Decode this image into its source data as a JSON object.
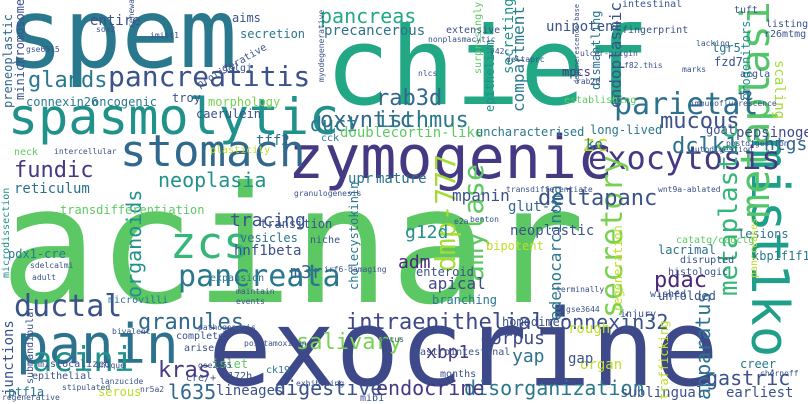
{
  "words": [
    {
      "text": "acinar",
      "color": "#5cc863"
    },
    {
      "text": "exocrine",
      "color": "#3e4989"
    },
    {
      "text": "spem",
      "color": "#2a788e"
    },
    {
      "text": "chief",
      "color": "#22a884"
    },
    {
      "text": "zymogenic",
      "color": "#443983"
    },
    {
      "text": "stomach",
      "color": "#31688e"
    },
    {
      "text": "spasmolytic",
      "color": "#21918c"
    },
    {
      "text": "panin",
      "color": "#2c728e"
    },
    {
      "text": "mist1ko",
      "color": "#1f9e89"
    },
    {
      "text": "metaplasia",
      "color": "#52c569"
    },
    {
      "text": "zcs",
      "color": "#35b779"
    },
    {
      "text": "pancreatitis",
      "color": "#3b528b"
    },
    {
      "text": "exocytosis",
      "color": "#443983"
    },
    {
      "text": "oxyntic",
      "color": "#31688e"
    },
    {
      "text": "parietal",
      "color": "#2c728e"
    },
    {
      "text": "pancreata",
      "color": "#2a788e"
    },
    {
      "text": "secretory",
      "color": "#7ad151"
    },
    {
      "text": "ductal",
      "color": "#3b528b"
    },
    {
      "text": "acini",
      "color": "#21918c"
    },
    {
      "text": "kras",
      "color": "#443983"
    },
    {
      "text": "dmp-777",
      "color": "#a5db36"
    },
    {
      "text": "amylase",
      "color": "#5ec962"
    },
    {
      "text": "pancreas",
      "color": "#22a884"
    },
    {
      "text": "glands",
      "color": "#2a788e"
    },
    {
      "text": "fundic",
      "color": "#443983"
    },
    {
      "text": "mucous",
      "color": "#3b528b"
    },
    {
      "text": "isthmus",
      "color": "#2a788e"
    },
    {
      "text": "rab3d",
      "color": "#31688e"
    },
    {
      "text": "dclk1",
      "color": "#2c728e"
    },
    {
      "text": "deltapanc",
      "color": "#3b528b"
    },
    {
      "text": "zc",
      "color": "#bddf26"
    },
    {
      "text": "neoplasia",
      "color": "#21918c"
    },
    {
      "text": "intraepithelial",
      "color": "#3e4989"
    },
    {
      "text": "salivary",
      "color": "#7ad151"
    },
    {
      "text": "granules",
      "color": "#31688e"
    },
    {
      "text": "organoids",
      "color": "#21918c"
    },
    {
      "text": "metaplastic",
      "color": "#35b779"
    },
    {
      "text": "connexin32",
      "color": "#3b528b"
    },
    {
      "text": "adenocarcinoma",
      "color": "#2a788e"
    },
    {
      "text": "apparatus",
      "color": "#2c728e"
    },
    {
      "text": "gastric",
      "color": "#3b528b"
    },
    {
      "text": "xbp1",
      "color": "#443983"
    },
    {
      "text": "pdac",
      "color": "#482878"
    },
    {
      "text": "yap",
      "color": "#2c728e"
    },
    {
      "text": "corpus",
      "color": "#3e4989"
    },
    {
      "text": "disorganization",
      "color": "#2a788e"
    },
    {
      "text": "digestive",
      "color": "#3b528b"
    },
    {
      "text": "endocrine",
      "color": "#443983"
    },
    {
      "text": "l635",
      "color": "#31688e"
    },
    {
      "text": "junctions",
      "color": "#3b528b"
    },
    {
      "text": "duct",
      "color": "#2a788e"
    },
    {
      "text": "tracing",
      "color": "#3b528b"
    },
    {
      "text": "m3r",
      "color": "#31688e"
    },
    {
      "text": "adm",
      "color": "#482878"
    },
    {
      "text": "g12d",
      "color": "#21918c"
    },
    {
      "text": "apical",
      "color": "#3e4989"
    },
    {
      "text": "htgs",
      "color": "#31688e"
    },
    {
      "text": "pepsinogen",
      "color": "#3e4989"
    },
    {
      "text": "mpanin",
      "color": "#3b528b"
    },
    {
      "text": "transdifferentiation",
      "color": "#5ec962"
    },
    {
      "text": "hnf1beta",
      "color": "#3b528b"
    },
    {
      "text": "vesicles",
      "color": "#2c728e"
    },
    {
      "text": "glut-2",
      "color": "#31688e"
    },
    {
      "text": "compartment",
      "color": "#2a788e"
    },
    {
      "text": "endoplasmic",
      "color": "#3b528b"
    },
    {
      "text": "mpcs",
      "color": "#443983"
    },
    {
      "text": "secreting",
      "color": "#21918c"
    },
    {
      "text": "unipotent",
      "color": "#3b528b"
    },
    {
      "text": "doublecortin-like",
      "color": "#5ec962"
    },
    {
      "text": "connexin26",
      "color": "#2a788e"
    },
    {
      "text": "preneoplastic",
      "color": "#31688e"
    },
    {
      "text": "minichromosome",
      "color": "#3b528b"
    },
    {
      "text": "morphology",
      "color": "#7ad151"
    },
    {
      "text": "caerulein",
      "color": "#3b528b"
    },
    {
      "text": "reticulum",
      "color": "#2c728e"
    },
    {
      "text": "tff2",
      "color": "#2c728e"
    },
    {
      "text": "lineages",
      "color": "#3b528b"
    },
    {
      "text": "serous",
      "color": "#bddf26"
    },
    {
      "text": "islet",
      "color": "#5ec962"
    },
    {
      "text": "organ",
      "color": "#bddf26"
    },
    {
      "text": "rough",
      "color": "#bddf26"
    },
    {
      "text": "gap",
      "color": "#3b528b"
    },
    {
      "text": "creer",
      "color": "#2a788e"
    },
    {
      "text": "earliest",
      "color": "#3b528b"
    },
    {
      "text": "sublingual",
      "color": "#3b528b"
    },
    {
      "text": "ptf1a",
      "color": "#2a788e"
    },
    {
      "text": "pdx1-cre",
      "color": "#2a788e"
    },
    {
      "text": "lesions",
      "color": "#2c728e"
    },
    {
      "text": "progenitors",
      "color": "#21918c"
    },
    {
      "text": "scaling",
      "color": "#a5db36"
    },
    {
      "text": "t2",
      "color": "#3b528b"
    },
    {
      "text": "lgr5",
      "color": "#2a788e"
    },
    {
      "text": "fzd7",
      "color": "#3b528b"
    },
    {
      "text": "dismantling",
      "color": "#2c728e"
    },
    {
      "text": "epithelium",
      "color": "#21918c"
    },
    {
      "text": "trafficking",
      "color": "#bddf26"
    },
    {
      "text": "homodimer",
      "color": "#3b528b"
    },
    {
      "text": "enteroid",
      "color": "#3b528b"
    },
    {
      "text": "bipotent",
      "color": "#bddf26"
    },
    {
      "text": "neoplastic",
      "color": "#3b528b"
    },
    {
      "text": "mature",
      "color": "#2c728e"
    },
    {
      "text": "upr",
      "color": "#2a788e"
    },
    {
      "text": "ko",
      "color": "#2a788e"
    },
    {
      "text": "long-lived",
      "color": "#2a788e"
    },
    {
      "text": "goal",
      "color": "#3b528b"
    },
    {
      "text": "regeneration",
      "color": "#bddf26"
    },
    {
      "text": "unfolded",
      "color": "#3b528b"
    },
    {
      "text": "lacrimal",
      "color": "#2c728e"
    },
    {
      "text": "branching",
      "color": "#2a788e"
    },
    {
      "text": "transition",
      "color": "#3b528b"
    },
    {
      "text": "niche",
      "color": "#3b528b"
    },
    {
      "text": "cholecystokinin",
      "color": "#2a788e"
    },
    {
      "text": "precancerous",
      "color": "#2c728e"
    },
    {
      "text": "entire",
      "color": "#3b528b"
    },
    {
      "text": "aims",
      "color": "#3b528b"
    },
    {
      "text": "secretion",
      "color": "#2a788e"
    },
    {
      "text": "troy",
      "color": "#3b528b"
    },
    {
      "text": "oncogenic",
      "color": "#2a788e"
    },
    {
      "text": "golgi",
      "color": "#3b528b"
    },
    {
      "text": "plasticity",
      "color": "#bddf26"
    },
    {
      "text": "cck",
      "color": "#2c728e"
    },
    {
      "text": "uncharacterised",
      "color": "#2a788e"
    },
    {
      "text": "extensive",
      "color": "#3b528b"
    },
    {
      "text": "fingerprint",
      "color": "#3b528b"
    },
    {
      "text": "tuft",
      "color": "#3b528b"
    },
    {
      "text": "intestinal",
      "color": "#3b528b"
    },
    {
      "text": "listing",
      "color": "#3b528b"
    },
    {
      "text": "r26mtmg",
      "color": "#3b528b"
    },
    {
      "text": "acgla",
      "color": "#3b528b"
    },
    {
      "text": "neck",
      "color": "#5ec962"
    },
    {
      "text": "microdissection",
      "color": "#21918c"
    },
    {
      "text": "microvilli",
      "color": "#2c728e"
    },
    {
      "text": "months",
      "color": "#3b528b"
    },
    {
      "text": "wished",
      "color": "#3b528b"
    },
    {
      "text": "injury",
      "color": "#3b528b"
    },
    {
      "text": "arises",
      "color": "#3b528b"
    },
    {
      "text": "complete",
      "color": "#3b528b"
    },
    {
      "text": "r172h",
      "color": "#3b528b"
    },
    {
      "text": "mib1",
      "color": "#3b528b"
    },
    {
      "text": "expansion",
      "color": "#2c728e"
    },
    {
      "text": "xbp1f1f1",
      "color": "#2a788e"
    },
    {
      "text": "pancreases",
      "color": "#bddf26"
    },
    {
      "text": "proliferative",
      "color": "#3b528b"
    },
    {
      "text": "catatg/cagctg",
      "color": "#5ec962"
    },
    {
      "text": "surprisingly",
      "color": "#5ec962"
    },
    {
      "text": "cre/+",
      "color": "#3b528b"
    },
    {
      "text": "mislocalized",
      "color": "#3b528b"
    },
    {
      "text": "epithelial",
      "color": "#3b528b"
    },
    {
      "text": "submandibular",
      "color": "#3b528b"
    },
    {
      "text": "ck19",
      "color": "#2c728e"
    },
    {
      "text": "gastrointestinal",
      "color": "#3b528b"
    },
    {
      "text": "histologic",
      "color": "#3b528b"
    },
    {
      "text": "disrupted",
      "color": "#3b528b"
    },
    {
      "text": "establishing",
      "color": "#5ec962"
    },
    {
      "text": "immunofluorescence",
      "color": "#3b528b"
    },
    {
      "text": "granulogenesis",
      "color": "#3b528b"
    },
    {
      "text": "intercellular",
      "color": "#3b528b"
    },
    {
      "text": "terminally",
      "color": "#3b528b"
    },
    {
      "text": "chernoff",
      "color": "#3b528b"
    },
    {
      "text": "benton",
      "color": "#3b528b"
    },
    {
      "text": "rab26",
      "color": "#3b528b"
    },
    {
      "text": "nonplasmacytic",
      "color": "#3b528b"
    },
    {
      "text": "f82.this",
      "color": "#3b528b"
    },
    {
      "text": "regenerative",
      "color": "#3b528b"
    },
    {
      "text": "exhibiting",
      "color": "#3b528b"
    },
    {
      "text": "ulcer-origin",
      "color": "#3b528b"
    },
    {
      "text": "wnt9a-ablated",
      "color": "#3b528b"
    },
    {
      "text": "irf6-damaging",
      "color": "#3b528b"
    },
    {
      "text": "gse6515",
      "color": "#3b528b"
    },
    {
      "text": "lacking",
      "color": "#3b528b"
    },
    {
      "text": "imist1",
      "color": "#3b528b"
    },
    {
      "text": "marks",
      "color": "#3b528b"
    },
    {
      "text": "bivalent",
      "color": "#3b528b"
    },
    {
      "text": "gse3644",
      "color": "#3b528b"
    },
    {
      "text": "nr5a2",
      "color": "#3b528b"
    },
    {
      "text": "gse2165",
      "color": "#3b528b"
    },
    {
      "text": "stipulated",
      "color": "#3b528b"
    },
    {
      "text": "degenerescence-base",
      "color": "#3b528b"
    },
    {
      "text": "posttamoxifen",
      "color": "#3b528b"
    },
    {
      "text": "postdigestion",
      "color": "#3b528b"
    },
    {
      "text": "unique",
      "color": "#3b528b"
    },
    {
      "text": "adult",
      "color": "#3b528b"
    },
    {
      "text": "sdelcalmi",
      "color": "#3b528b"
    },
    {
      "text": "lanzucide",
      "color": "#3b528b"
    },
    {
      "text": "maintain",
      "color": "#3b528b"
    },
    {
      "text": "events",
      "color": "#3b528b"
    },
    {
      "text": "pathogenesis",
      "color": "#3b528b"
    },
    {
      "text": "mucus",
      "color": "#3b528b"
    },
    {
      "text": "transdifferentiate",
      "color": "#3b528b"
    },
    {
      "text": "sox2",
      "color": "#3b528b"
    },
    {
      "text": "y42c",
      "color": "#3b528b"
    },
    {
      "text": "nlcs",
      "color": "#3b528b"
    },
    {
      "text": "e2a",
      "color": "#3b528b"
    },
    {
      "text": "deltaprc",
      "color": "#3b528b"
    },
    {
      "text": "myodegenerative",
      "color": "#3b528b"
    },
    {
      "text": "renewable",
      "color": "#3b528b"
    },
    {
      "text": "autodigestion",
      "color": "#3b528b"
    }
  ]
}
